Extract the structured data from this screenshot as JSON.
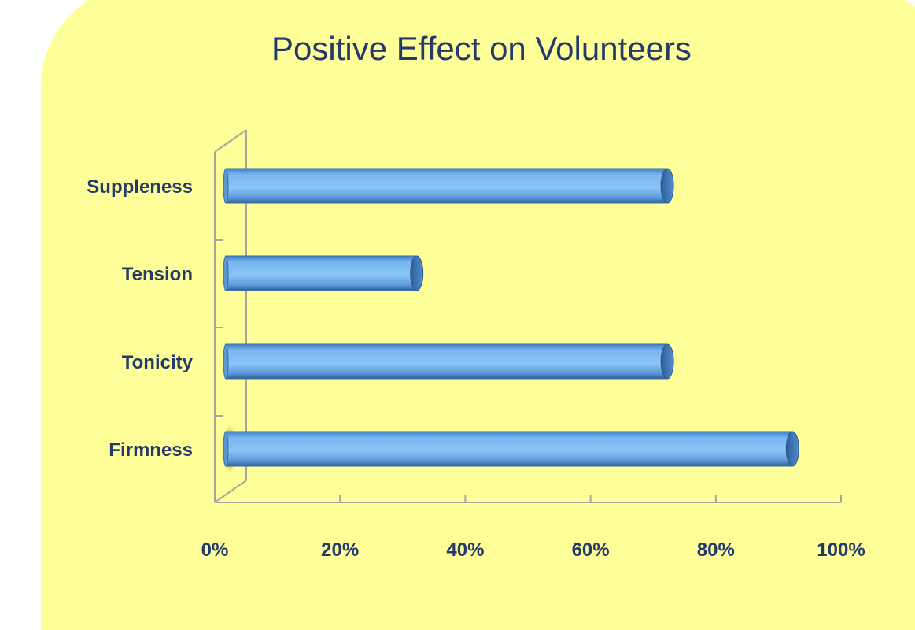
{
  "chart_data": {
    "type": "bar",
    "orientation": "horizontal",
    "title": "Positive Effect on Volunteers",
    "categories": [
      "Firmness",
      "Tonicity",
      "Tension",
      "Suppleness"
    ],
    "values": [
      93,
      73,
      33,
      73
    ],
    "xlim": [
      0,
      100
    ],
    "x_ticks": [
      0,
      20,
      40,
      60,
      80,
      100
    ],
    "x_tick_labels": [
      "0%",
      "20%",
      "40%",
      "60%",
      "80%",
      "100%"
    ],
    "xlabel": "",
    "ylabel": "",
    "grid": false,
    "legend": "none",
    "colors": {
      "bar": "#6aaeea",
      "bar_end": "#3a72b4",
      "background": "#ffff99",
      "text": "#233a6b",
      "axis": "#a7a69a"
    }
  }
}
